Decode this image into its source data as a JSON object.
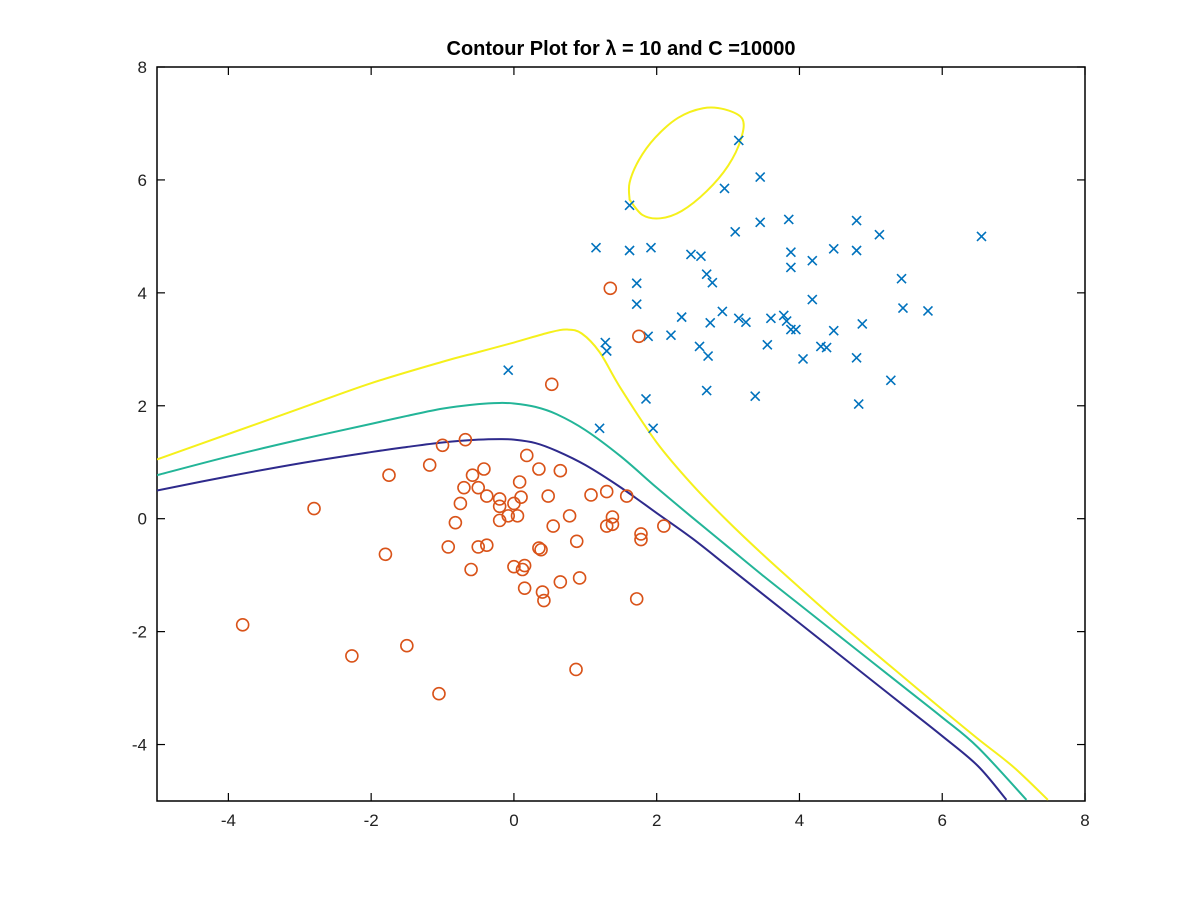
{
  "chart_data": {
    "type": "scatter",
    "title": "Contour Plot for λ = 10 and C =10000",
    "xlabel": "",
    "ylabel": "",
    "xlim": [
      -5,
      8
    ],
    "ylim": [
      -5,
      8
    ],
    "xticks": [
      -4,
      -2,
      0,
      2,
      4,
      6,
      8
    ],
    "yticks": [
      -4,
      -2,
      0,
      2,
      4,
      6,
      8
    ],
    "xtick_labels": [
      "-4",
      "-2",
      "0",
      "2",
      "4",
      "6",
      "8"
    ],
    "ytick_labels": [
      "-4",
      "-2",
      "0",
      "2",
      "4",
      "6",
      "8"
    ],
    "grid": false,
    "legend": false,
    "series": [
      {
        "marker": "x",
        "color": "#0072BD",
        "points": [
          [
            3.15,
            6.7
          ],
          [
            3.45,
            6.05
          ],
          [
            2.95,
            5.85
          ],
          [
            1.62,
            5.55
          ],
          [
            3.1,
            5.08
          ],
          [
            3.45,
            5.25
          ],
          [
            3.85,
            5.3
          ],
          [
            4.8,
            5.28
          ],
          [
            5.12,
            5.03
          ],
          [
            6.55,
            5.0
          ],
          [
            1.15,
            4.8
          ],
          [
            1.62,
            4.75
          ],
          [
            1.92,
            4.8
          ],
          [
            2.48,
            4.68
          ],
          [
            2.62,
            4.65
          ],
          [
            3.88,
            4.72
          ],
          [
            4.48,
            4.78
          ],
          [
            4.8,
            4.75
          ],
          [
            4.18,
            4.57
          ],
          [
            3.88,
            4.45
          ],
          [
            1.72,
            4.17
          ],
          [
            2.7,
            4.33
          ],
          [
            2.78,
            4.18
          ],
          [
            5.43,
            4.25
          ],
          [
            1.72,
            3.8
          ],
          [
            4.18,
            3.88
          ],
          [
            5.45,
            3.73
          ],
          [
            5.8,
            3.68
          ],
          [
            2.92,
            3.67
          ],
          [
            2.35,
            3.57
          ],
          [
            3.15,
            3.55
          ],
          [
            3.25,
            3.48
          ],
          [
            2.75,
            3.47
          ],
          [
            3.6,
            3.55
          ],
          [
            3.78,
            3.6
          ],
          [
            3.82,
            3.5
          ],
          [
            3.88,
            3.35
          ],
          [
            3.95,
            3.35
          ],
          [
            4.48,
            3.33
          ],
          [
            4.88,
            3.45
          ],
          [
            1.28,
            3.12
          ],
          [
            1.3,
            2.97
          ],
          [
            1.88,
            3.23
          ],
          [
            2.2,
            3.25
          ],
          [
            2.6,
            3.05
          ],
          [
            2.72,
            2.88
          ],
          [
            3.55,
            3.08
          ],
          [
            4.3,
            3.05
          ],
          [
            4.38,
            3.03
          ],
          [
            4.05,
            2.83
          ],
          [
            4.8,
            2.85
          ],
          [
            5.28,
            2.45
          ],
          [
            2.7,
            2.27
          ],
          [
            3.38,
            2.17
          ],
          [
            4.83,
            2.03
          ],
          [
            1.85,
            2.12
          ],
          [
            -0.08,
            2.63
          ],
          [
            1.2,
            1.6
          ],
          [
            1.95,
            1.6
          ]
        ]
      },
      {
        "marker": "o",
        "color": "#D95319",
        "points": [
          [
            1.35,
            4.08
          ],
          [
            1.75,
            3.23
          ],
          [
            0.53,
            2.38
          ],
          [
            -0.68,
            1.4
          ],
          [
            -1.0,
            1.3
          ],
          [
            0.18,
            1.12
          ],
          [
            -1.18,
            0.95
          ],
          [
            -1.75,
            0.77
          ],
          [
            -0.58,
            0.77
          ],
          [
            -0.42,
            0.88
          ],
          [
            0.35,
            0.88
          ],
          [
            0.65,
            0.85
          ],
          [
            -0.7,
            0.55
          ],
          [
            -0.5,
            0.55
          ],
          [
            -0.38,
            0.4
          ],
          [
            -0.2,
            0.35
          ],
          [
            0.08,
            0.65
          ],
          [
            0.1,
            0.38
          ],
          [
            0.48,
            0.4
          ],
          [
            1.08,
            0.42
          ],
          [
            1.3,
            0.48
          ],
          [
            1.58,
            0.4
          ],
          [
            -2.8,
            0.18
          ],
          [
            -0.75,
            0.27
          ],
          [
            -0.2,
            0.22
          ],
          [
            0.0,
            0.27
          ],
          [
            -0.08,
            0.05
          ],
          [
            0.05,
            0.05
          ],
          [
            -0.2,
            -0.03
          ],
          [
            -0.82,
            -0.07
          ],
          [
            0.78,
            0.05
          ],
          [
            1.38,
            0.03
          ],
          [
            0.55,
            -0.13
          ],
          [
            1.3,
            -0.13
          ],
          [
            1.38,
            -0.1
          ],
          [
            2.1,
            -0.13
          ],
          [
            1.78,
            -0.27
          ],
          [
            1.78,
            -0.37
          ],
          [
            0.88,
            -0.4
          ],
          [
            -0.92,
            -0.5
          ],
          [
            -0.5,
            -0.5
          ],
          [
            -0.38,
            -0.47
          ],
          [
            0.35,
            -0.52
          ],
          [
            0.38,
            -0.55
          ],
          [
            -1.8,
            -0.63
          ],
          [
            0.0,
            -0.85
          ],
          [
            0.15,
            -0.83
          ],
          [
            0.12,
            -0.9
          ],
          [
            -0.6,
            -0.9
          ],
          [
            0.92,
            -1.05
          ],
          [
            0.65,
            -1.12
          ],
          [
            0.15,
            -1.23
          ],
          [
            0.4,
            -1.3
          ],
          [
            0.42,
            -1.45
          ],
          [
            1.72,
            -1.42
          ],
          [
            -3.8,
            -1.88
          ],
          [
            -1.5,
            -2.25
          ],
          [
            -2.27,
            -2.43
          ],
          [
            0.87,
            -2.67
          ],
          [
            -1.05,
            -3.1
          ]
        ]
      }
    ],
    "contours": [
      {
        "color": "#2E2A8C",
        "points": [
          [
            -5,
            0.5
          ],
          [
            -4,
            0.75
          ],
          [
            -3,
            0.98
          ],
          [
            -2,
            1.18
          ],
          [
            -1.5,
            1.27
          ],
          [
            -1,
            1.35
          ],
          [
            -0.5,
            1.4
          ],
          [
            -0.2,
            1.41
          ],
          [
            0,
            1.4
          ],
          [
            0.3,
            1.34
          ],
          [
            0.6,
            1.2
          ],
          [
            1.0,
            0.95
          ],
          [
            1.5,
            0.55
          ],
          [
            2.0,
            0.1
          ],
          [
            2.5,
            -0.35
          ],
          [
            3,
            -0.85
          ],
          [
            3.5,
            -1.35
          ],
          [
            4,
            -1.85
          ],
          [
            4.5,
            -2.35
          ],
          [
            5,
            -2.85
          ],
          [
            5.5,
            -3.35
          ],
          [
            6,
            -3.85
          ],
          [
            6.5,
            -4.38
          ],
          [
            6.9,
            -4.98
          ]
        ]
      },
      {
        "color": "#23B598",
        "points": [
          [
            -5,
            0.77
          ],
          [
            -4,
            1.1
          ],
          [
            -3,
            1.4
          ],
          [
            -2,
            1.68
          ],
          [
            -1.5,
            1.82
          ],
          [
            -1,
            1.95
          ],
          [
            -0.5,
            2.03
          ],
          [
            -0.2,
            2.05
          ],
          [
            0,
            2.04
          ],
          [
            0.3,
            1.98
          ],
          [
            0.6,
            1.85
          ],
          [
            1.0,
            1.57
          ],
          [
            1.5,
            1.1
          ],
          [
            2.0,
            0.55
          ],
          [
            2.5,
            0.02
          ],
          [
            3,
            -0.5
          ],
          [
            3.5,
            -1.02
          ],
          [
            4,
            -1.52
          ],
          [
            4.5,
            -2.02
          ],
          [
            5,
            -2.52
          ],
          [
            5.5,
            -3.02
          ],
          [
            6,
            -3.52
          ],
          [
            6.5,
            -4.05
          ],
          [
            7.18,
            -4.98
          ]
        ]
      },
      {
        "color": "#F5F01B",
        "points": [
          [
            -5,
            1.05
          ],
          [
            -4,
            1.5
          ],
          [
            -3,
            1.95
          ],
          [
            -2,
            2.4
          ],
          [
            -1,
            2.78
          ],
          [
            -0.5,
            2.95
          ],
          [
            0,
            3.12
          ],
          [
            0.5,
            3.3
          ],
          [
            0.75,
            3.35
          ],
          [
            0.95,
            3.28
          ],
          [
            1.2,
            2.95
          ],
          [
            1.5,
            2.3
          ],
          [
            2.0,
            1.35
          ],
          [
            2.5,
            0.6
          ],
          [
            3,
            -0.05
          ],
          [
            3.5,
            -0.65
          ],
          [
            4,
            -1.22
          ],
          [
            4.5,
            -1.78
          ],
          [
            5,
            -2.32
          ],
          [
            5.5,
            -2.85
          ],
          [
            6,
            -3.38
          ],
          [
            6.5,
            -3.9
          ],
          [
            7.0,
            -4.4
          ],
          [
            7.48,
            -4.98
          ]
        ]
      },
      {
        "color": "#F5F01B",
        "closed": true,
        "points": [
          [
            1.62,
            5.65
          ],
          [
            1.62,
            5.95
          ],
          [
            1.75,
            6.35
          ],
          [
            1.98,
            6.75
          ],
          [
            2.3,
            7.1
          ],
          [
            2.65,
            7.27
          ],
          [
            2.95,
            7.25
          ],
          [
            3.2,
            7.08
          ],
          [
            3.18,
            6.72
          ],
          [
            3.0,
            6.25
          ],
          [
            2.7,
            5.8
          ],
          [
            2.35,
            5.45
          ],
          [
            2.05,
            5.32
          ],
          [
            1.8,
            5.38
          ],
          [
            1.62,
            5.65
          ]
        ]
      }
    ]
  }
}
